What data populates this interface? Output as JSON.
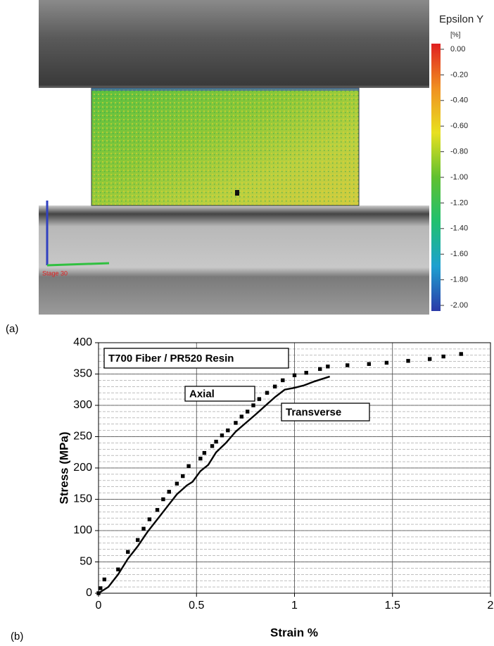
{
  "image_panel": {
    "label": "(a)",
    "field_name": "Epsilon Y",
    "unit": "[%]",
    "stage": "Stage 30",
    "colorbar": {
      "lim": [
        -2,
        0
      ],
      "colors": [
        "#2b3aa8",
        "#1ea0d0",
        "#20c070",
        "#60c030",
        "#e8e020",
        "#f09020",
        "#e02020"
      ],
      "ticks": [
        {
          "value": 0,
          "label": "0.00"
        },
        {
          "value": -0.2,
          "label": "-0.20"
        },
        {
          "value": -0.4,
          "label": "-0.40"
        },
        {
          "value": -0.6,
          "label": "-0.60"
        },
        {
          "value": -0.8,
          "label": "-0.80"
        },
        {
          "value": -1,
          "label": "-1.00"
        },
        {
          "value": -1.2,
          "label": "-1.20"
        },
        {
          "value": -1.4,
          "label": "-1.40"
        },
        {
          "value": -1.6,
          "label": "-1.60"
        },
        {
          "value": -1.8,
          "label": "-1.80"
        },
        {
          "value": -2,
          "label": "-2.00"
        }
      ]
    }
  },
  "chart_data": {
    "type": "line",
    "panel_label": "(b)",
    "x_label": "Strain %",
    "y_label": "Stress (MPa)",
    "annotation": "T700 Fiber / PR520 Resin",
    "xlim": [
      0,
      2
    ],
    "ylim": [
      0,
      400
    ],
    "xticks": [
      0,
      0.5,
      1,
      1.5,
      2
    ],
    "yticks": [
      0,
      50,
      100,
      150,
      200,
      250,
      300,
      350,
      400
    ],
    "grid": true,
    "minor_ystep": 10,
    "series": [
      {
        "name": "Axial",
        "color": "#000000",
        "marker": "square",
        "x": [
          0,
          0.01,
          0.03,
          0.1,
          0.15,
          0.2,
          0.23,
          0.26,
          0.3,
          0.33,
          0.36,
          0.4,
          0.43,
          0.46,
          0.52,
          0.54,
          0.58,
          0.6,
          0.63,
          0.66,
          0.7,
          0.73,
          0.76,
          0.79,
          0.82,
          0.86,
          0.9,
          0.94,
          1.0,
          1.06,
          1.13,
          1.17,
          1.27,
          1.38,
          1.47,
          1.58,
          1.69,
          1.76,
          1.85
        ],
        "values": [
          0,
          8,
          22,
          38,
          66,
          85,
          103,
          118,
          133,
          150,
          162,
          175,
          187,
          203,
          215,
          224,
          235,
          242,
          252,
          260,
          272,
          282,
          290,
          300,
          310,
          320,
          330,
          340,
          348,
          352,
          358,
          362,
          364,
          366,
          368,
          371,
          374,
          378,
          382
        ]
      },
      {
        "name": "Transverse",
        "color": "#000000",
        "marker": "line",
        "x": [
          0,
          0.05,
          0.1,
          0.15,
          0.2,
          0.25,
          0.3,
          0.35,
          0.4,
          0.45,
          0.48,
          0.52,
          0.56,
          0.6,
          0.65,
          0.7,
          0.8,
          0.9,
          0.95,
          1.0,
          1.05,
          1.1,
          1.18
        ],
        "values": [
          0,
          10,
          30,
          55,
          75,
          98,
          118,
          138,
          158,
          172,
          178,
          195,
          205,
          225,
          240,
          258,
          285,
          313,
          325,
          328,
          332,
          338,
          346
        ]
      }
    ]
  }
}
